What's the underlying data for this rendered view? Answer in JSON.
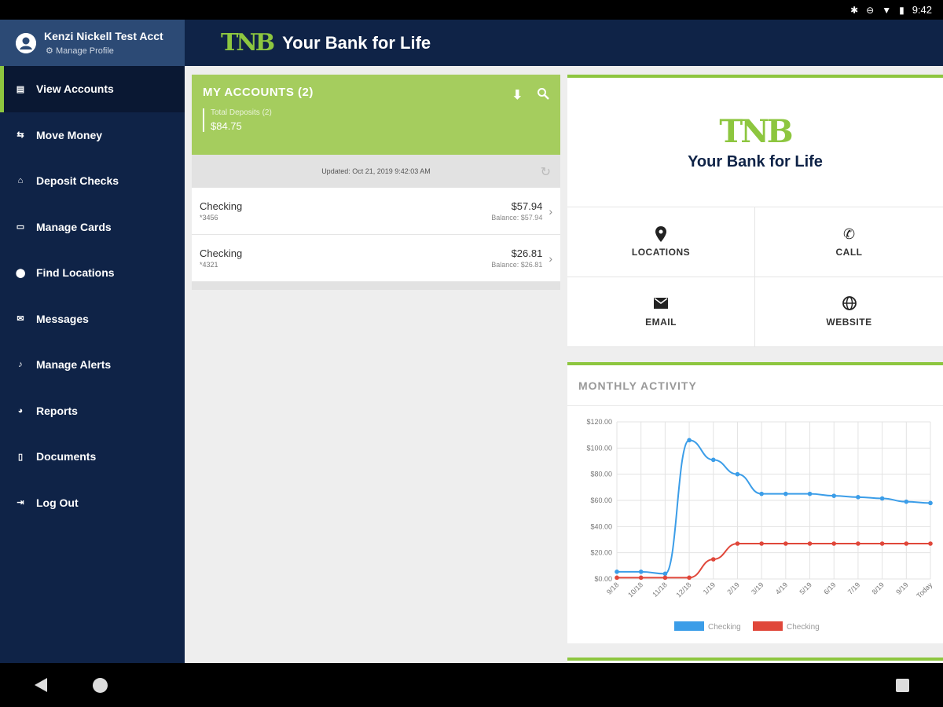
{
  "status_bar": {
    "time": "9:42"
  },
  "profile": {
    "name": "Kenzi Nickell Test Acct",
    "manage_label": "Manage Profile"
  },
  "brand": {
    "logo_mark": "TNB",
    "tagline": "Your Bank for Life"
  },
  "nav": [
    {
      "label": "View Accounts",
      "icon": "accounts-icon",
      "active": true
    },
    {
      "label": "Move Money",
      "icon": "transfer-icon"
    },
    {
      "label": "Deposit Checks",
      "icon": "bank-icon"
    },
    {
      "label": "Manage Cards",
      "icon": "card-icon"
    },
    {
      "label": "Find Locations",
      "icon": "location-pin-icon"
    },
    {
      "label": "Messages",
      "icon": "mail-icon"
    },
    {
      "label": "Manage Alerts",
      "icon": "bell-icon"
    },
    {
      "label": "Reports",
      "icon": "pie-chart-icon"
    },
    {
      "label": "Documents",
      "icon": "document-icon"
    },
    {
      "label": "Log Out",
      "icon": "logout-icon"
    }
  ],
  "accounts": {
    "title": "MY ACCOUNTS (2)",
    "total_label": "Total Deposits (2)",
    "total_value": "$84.75",
    "updated": "Updated: Oct 21, 2019 9:42:03 AM",
    "items": [
      {
        "name": "Checking",
        "number": "*3456",
        "amount": "$57.94",
        "balance": "Balance: $57.94"
      },
      {
        "name": "Checking",
        "number": "*4321",
        "amount": "$26.81",
        "balance": "Balance: $26.81"
      }
    ]
  },
  "contact": {
    "locations": "LOCATIONS",
    "call": "CALL",
    "email": "EMAIL",
    "website": "WEBSITE"
  },
  "activity": {
    "title": "MONTHLY ACTIVITY"
  },
  "colors": {
    "navy": "#0f2347",
    "green": "#8dc63f",
    "series_blue": "#3b9de8",
    "series_red": "#e0473a"
  },
  "chart_data": {
    "type": "line",
    "x": [
      "9/18",
      "10/18",
      "11/18",
      "12/18",
      "1/19",
      "2/19",
      "3/19",
      "4/19",
      "5/19",
      "6/19",
      "7/19",
      "8/19",
      "9/19",
      "Today"
    ],
    "series": [
      {
        "name": "Checking",
        "color": "#3b9de8",
        "values": [
          5.5,
          5.5,
          4,
          106,
          91,
          80,
          65,
          65,
          65,
          63.5,
          62.5,
          61.5,
          59,
          58
        ]
      },
      {
        "name": "Checking",
        "color": "#e0473a",
        "values": [
          1,
          1,
          1,
          1,
          15,
          27,
          27,
          27,
          27,
          27,
          27,
          27,
          27,
          27
        ]
      }
    ],
    "ylim": [
      0,
      120
    ],
    "yticks": [
      "$0.00",
      "$20.00",
      "$40.00",
      "$60.00",
      "$80.00",
      "$100.00",
      "$120.00"
    ],
    "grid": true,
    "legend": "bottom"
  }
}
